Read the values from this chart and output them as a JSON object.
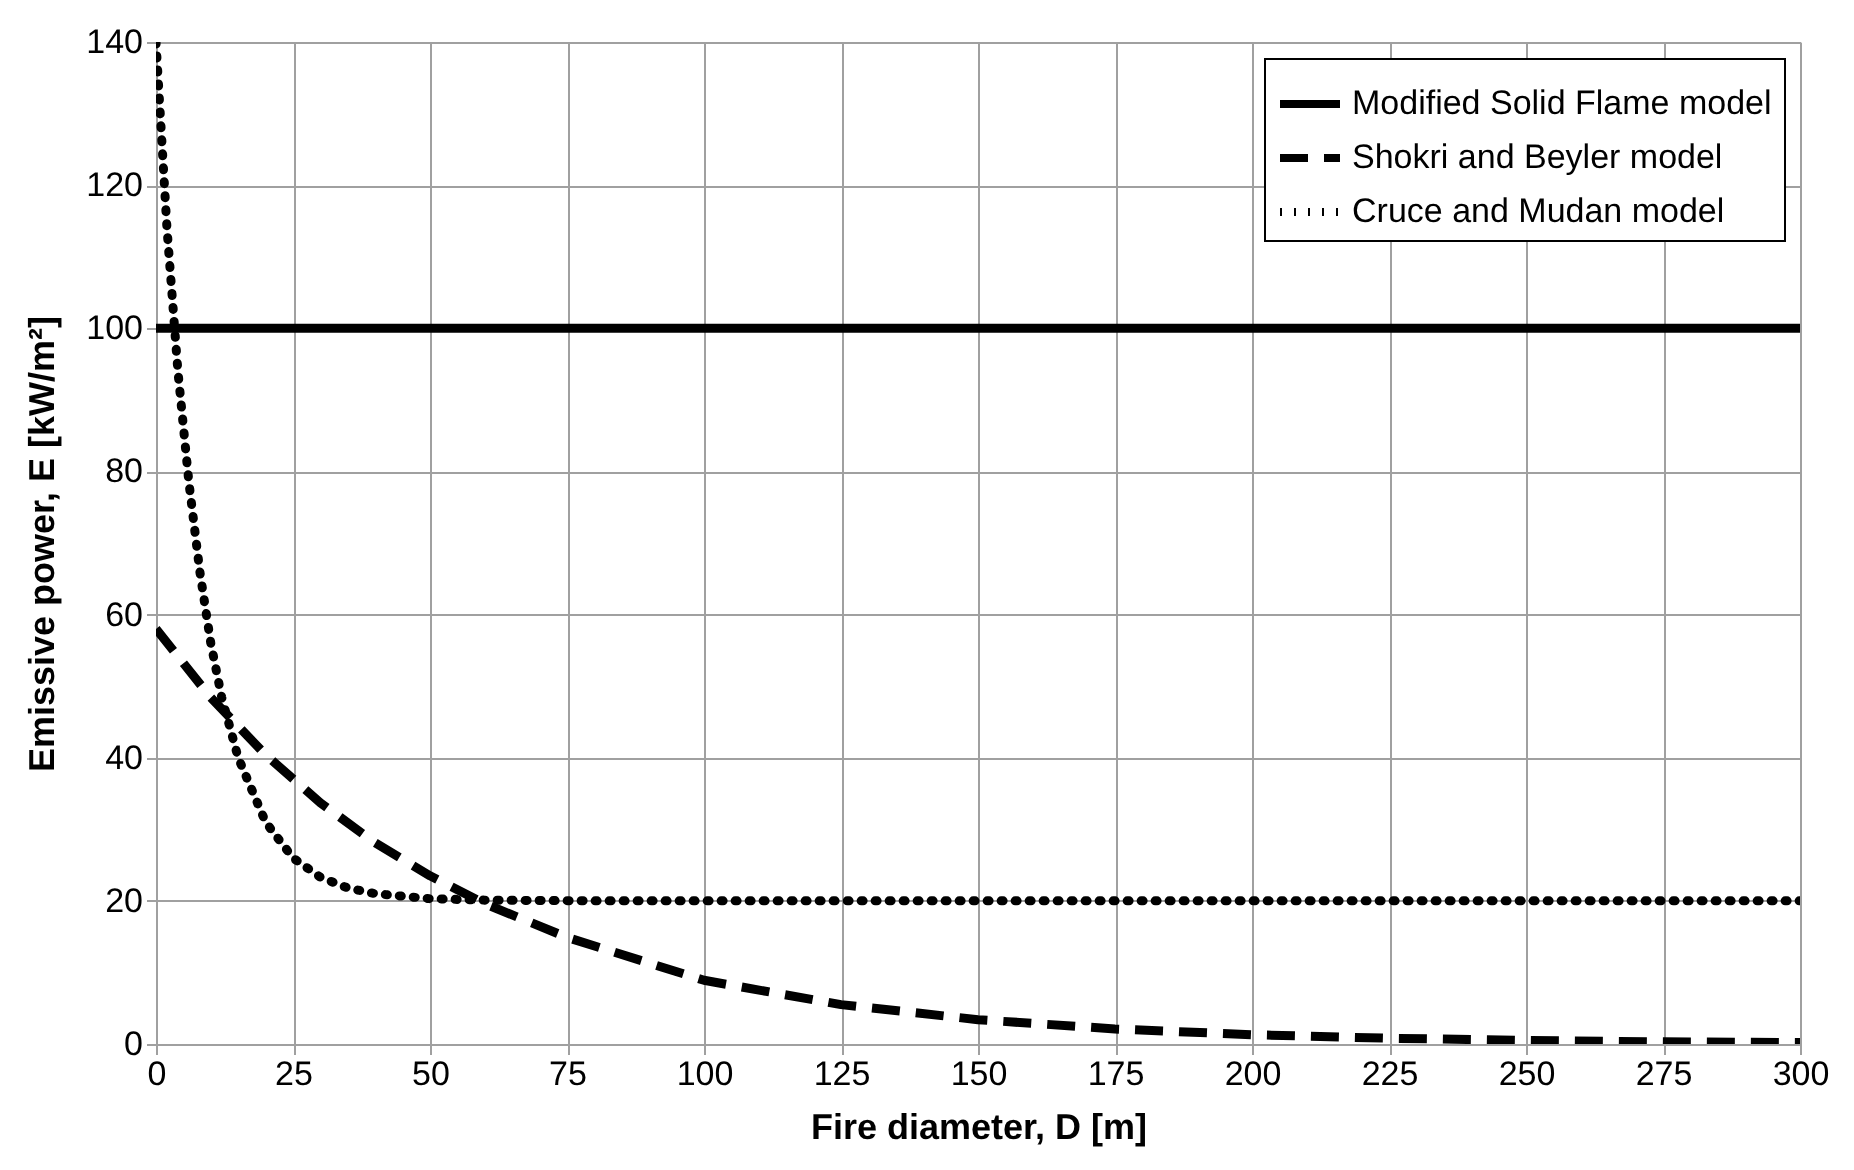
{
  "chart_data": {
    "type": "line",
    "xlabel": "Fire diameter, D [m]",
    "ylabel": "Emissive power, E [kW/m²]",
    "xlim": [
      0,
      300
    ],
    "xticks": [
      0,
      25,
      50,
      75,
      100,
      125,
      150,
      175,
      200,
      225,
      250,
      275,
      300
    ],
    "ylim": [
      0,
      140
    ],
    "yticks": [
      0,
      20,
      40,
      60,
      80,
      100,
      120,
      140
    ],
    "grid": true,
    "legend": "top right",
    "series": [
      {
        "name": "Modified Solid Flame model",
        "color": "#000000",
        "line_style": "solid",
        "x": [
          0,
          300
        ],
        "values": [
          100,
          100
        ]
      },
      {
        "name": "Shokri and Beyler model",
        "color": "#000000",
        "line_style": "dashed",
        "x": [
          0,
          10,
          20,
          30,
          40,
          50,
          60,
          75,
          100,
          125,
          150,
          175,
          200,
          225,
          250,
          275,
          300
        ],
        "values": [
          58,
          48.4,
          40.4,
          33.7,
          28.1,
          23.5,
          19.6,
          14.9,
          8.9,
          5.5,
          3.4,
          2.1,
          1.3,
          0.8,
          0.5,
          0.3,
          0.2
        ]
      },
      {
        "name": "Cruce and Mudan model",
        "color": "#000000",
        "line_style": "dotted",
        "x": [
          0,
          2,
          4,
          6,
          8,
          10,
          12,
          15,
          20,
          25,
          30,
          35,
          40,
          50,
          60,
          80,
          100,
          150,
          200,
          250,
          300
        ],
        "values": [
          140,
          114,
          94,
          78.5,
          66,
          56,
          48.4,
          40,
          31,
          26,
          23.3,
          21.8,
          21,
          20.3,
          20.1,
          20,
          20,
          20,
          20,
          20,
          20
        ]
      }
    ]
  }
}
